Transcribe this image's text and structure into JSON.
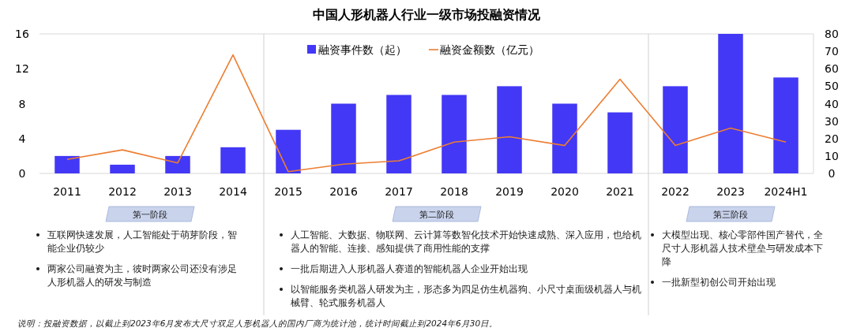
{
  "chart_data": {
    "type": "bar",
    "title": "中国人形机器人行业一级市场投融资情况",
    "categories": [
      "2011",
      "2012",
      "2013",
      "2014",
      "2015",
      "2016",
      "2017",
      "2018",
      "2019",
      "2020",
      "2021",
      "2022",
      "2023",
      "2024H1"
    ],
    "series": [
      {
        "name": "融资事件数（起）",
        "color": "#4338f5",
        "values": [
          2,
          1,
          2,
          3,
          5,
          8,
          9,
          9,
          10,
          8,
          7,
          10,
          16,
          11
        ]
      },
      {
        "name": "融资金额数（亿元）",
        "type": "line",
        "axis": "y2",
        "color": "#ed7d31",
        "values": [
          8,
          13.5,
          6,
          68,
          1,
          5.3,
          7.2,
          18,
          21,
          16,
          54,
          16,
          26,
          18
        ]
      }
    ],
    "ylim": [
      0,
      16
    ],
    "yticks": [
      0,
      4,
      8,
      12,
      16
    ],
    "y2lim": [
      0,
      80
    ],
    "y2ticks": [
      0,
      10,
      20,
      30,
      40,
      50,
      60,
      70,
      80
    ],
    "grid": false,
    "legend": "top",
    "marker": "none",
    "annotations": [
      "第一阶段",
      "互联网快速发展，人工智能处于萌芽阶段，智能企业仍较少",
      "两家公司融资为主，彼时两家公司还没有涉足人形机器人的研发与制造",
      "第二阶段",
      "人工智能、大数据、物联网、云计算等数智化技术开始快速成熟、深入应用，也给机器人的智能、连接、感知提供了商用性能的支撑",
      "一批后期进入人形机器人赛道的智能机器人企业开始出现",
      "以智能服务类机器人研发为主，形态多为四足仿生机器狗、小尺寸桌面级机器人与机械臂、轮式服务机器人",
      "第三阶段",
      "大模型出现、核心零部件国产替代，全尺寸人形机器人技术壁垒与研发成本下降",
      "一批新型初创公司开始出现",
      "说明：投融资数据，以截止到2023年6月发布大尺寸双足人形机器人的国内厂商为统计池，统计时间截止到2024年6月30日。"
    ]
  }
}
